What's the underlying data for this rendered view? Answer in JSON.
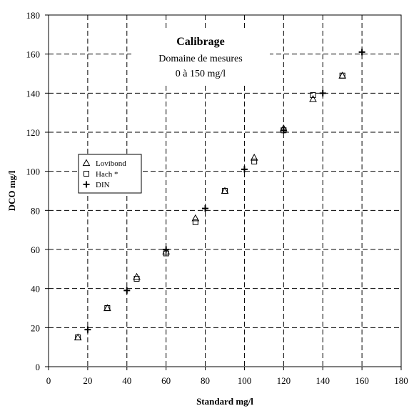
{
  "chart_data": {
    "type": "scatter",
    "title": "Calibrage",
    "subtitle_lines": [
      "Domaine de mesures",
      "0 à 150 mg/l"
    ],
    "xlabel": "Standard mg/l",
    "ylabel": "DCO mg/l",
    "xlim": [
      0,
      180
    ],
    "ylim": [
      0,
      180
    ],
    "x_ticks": [
      0,
      20,
      40,
      60,
      80,
      100,
      120,
      140,
      160,
      180
    ],
    "y_ticks": [
      0,
      20,
      40,
      60,
      80,
      100,
      120,
      140,
      160,
      180
    ],
    "grid": true,
    "grid_style": "dashed",
    "legend_position": "left",
    "series": [
      {
        "name": "Lovibond",
        "marker": "triangle",
        "points": [
          [
            15,
            15
          ],
          [
            30,
            30
          ],
          [
            45,
            46
          ],
          [
            60,
            59
          ],
          [
            75,
            76
          ],
          [
            90,
            90
          ],
          [
            105,
            107
          ],
          [
            120,
            122
          ],
          [
            135,
            137
          ],
          [
            150,
            149
          ]
        ]
      },
      {
        "name": "Hach *",
        "marker": "square",
        "points": [
          [
            15,
            15
          ],
          [
            30,
            30
          ],
          [
            45,
            45
          ],
          [
            60,
            58
          ],
          [
            75,
            74
          ],
          [
            90,
            90
          ],
          [
            105,
            105
          ],
          [
            120,
            121
          ],
          [
            135,
            139
          ],
          [
            150,
            149
          ]
        ]
      },
      {
        "name": "DIN",
        "marker": "plus",
        "points": [
          [
            20,
            19
          ],
          [
            40,
            39
          ],
          [
            60,
            60
          ],
          [
            80,
            81
          ],
          [
            100,
            101
          ],
          [
            120,
            121
          ],
          [
            140,
            140
          ],
          [
            160,
            161
          ]
        ]
      }
    ]
  }
}
